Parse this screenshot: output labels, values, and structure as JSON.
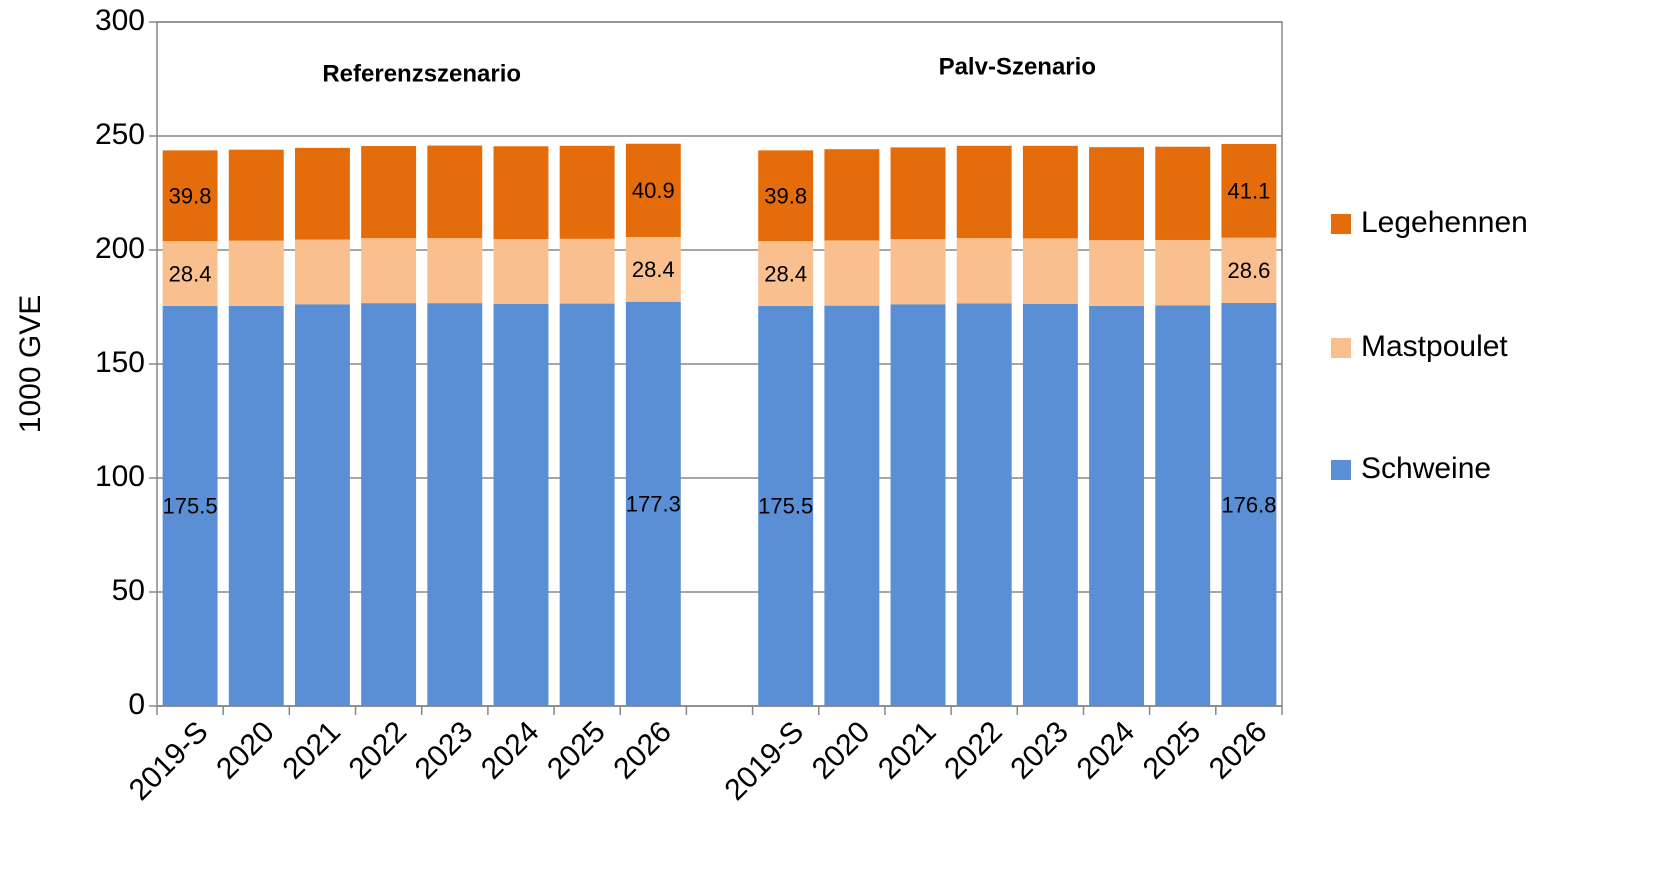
{
  "chart_data": {
    "type": "stacked_bar",
    "y_label": "1000 GVE",
    "annotations": [
      "Referenzszenario",
      "Palv-Szenario"
    ],
    "categories": [
      "2019-S",
      "2020",
      "2021",
      "2022",
      "2023",
      "2024",
      "2025",
      "2026",
      null,
      "2019-S",
      "2020",
      "2021",
      "2022",
      "2023",
      "2024",
      "2025",
      "2026"
    ],
    "series": [
      {
        "name": "Schweine",
        "color": "#5b8fd5",
        "values": [
          175.5,
          175.5,
          176.2,
          176.7,
          176.7,
          176.4,
          176.5,
          177.3,
          null,
          175.5,
          175.6,
          176.2,
          176.6,
          176.4,
          175.5,
          175.7,
          176.8
        ],
        "value_labels": [
          "175.5",
          null,
          null,
          null,
          null,
          null,
          null,
          "177.3",
          null,
          "175.5",
          null,
          null,
          null,
          null,
          null,
          null,
          "176.8"
        ]
      },
      {
        "name": "Mastpoulet",
        "color": "#f9bf8f",
        "values": [
          28.4,
          28.6,
          28.4,
          28.5,
          28.5,
          28.4,
          28.4,
          28.4,
          null,
          28.4,
          28.6,
          28.6,
          28.6,
          28.7,
          28.8,
          28.7,
          28.6
        ],
        "value_labels": [
          "28.4",
          null,
          null,
          null,
          null,
          null,
          null,
          "28.4",
          null,
          "28.4",
          null,
          null,
          null,
          null,
          null,
          null,
          "28.6"
        ]
      },
      {
        "name": "Legehennen",
        "color": "#e46c0a",
        "values": [
          39.8,
          39.9,
          40.2,
          40.4,
          40.6,
          40.7,
          40.8,
          40.9,
          null,
          39.8,
          40.0,
          40.2,
          40.5,
          40.6,
          40.8,
          40.9,
          41.1
        ],
        "value_labels": [
          "39.8",
          null,
          null,
          null,
          null,
          null,
          null,
          "40.9",
          null,
          "39.8",
          null,
          null,
          null,
          null,
          null,
          null,
          "41.1"
        ]
      }
    ],
    "ylim": [
      0,
      300
    ],
    "yticks": [
      0,
      50,
      100,
      150,
      200,
      250,
      300
    ],
    "grid": true,
    "legend": "right"
  }
}
